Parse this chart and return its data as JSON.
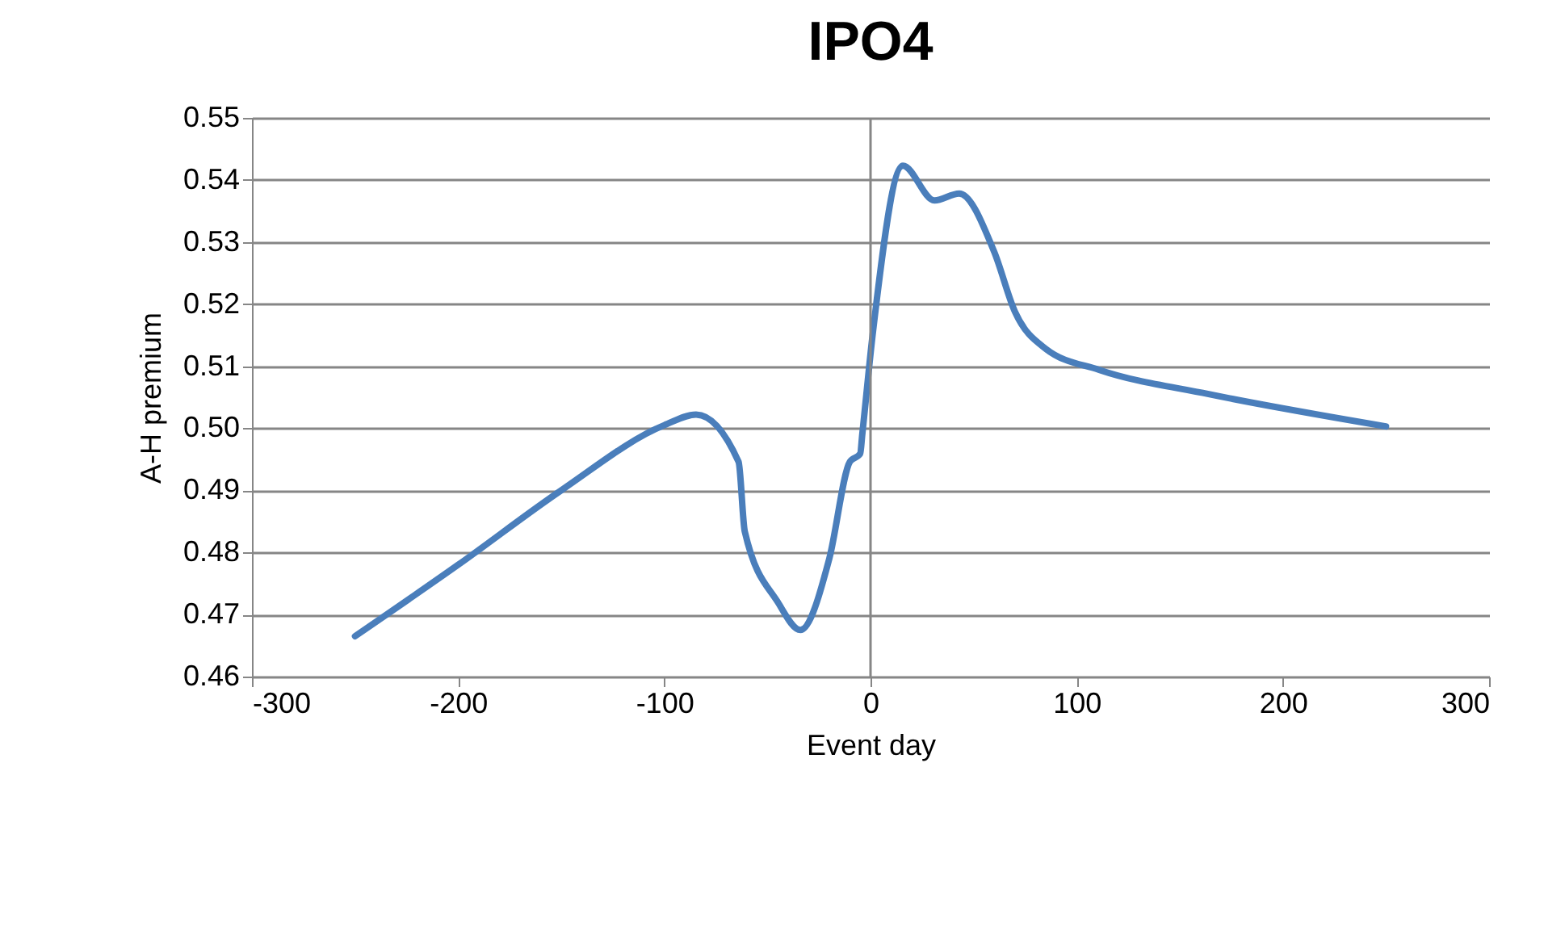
{
  "chart_data": {
    "type": "line",
    "title": "IPO4",
    "xlabel": "Event day",
    "ylabel": "A-H premium",
    "x": [
      -250,
      -200,
      -150,
      -100,
      -84.6,
      -64,
      -61,
      -45,
      -34,
      -20,
      -10,
      -5,
      -4,
      1,
      15.7,
      31,
      43,
      60,
      70,
      85,
      111,
      164,
      250
    ],
    "series": [
      {
        "color": "#4a7ebb",
        "values": [
          0.4665,
          0.478,
          0.49,
          0.5005,
          0.5022,
          0.4946,
          0.4834,
          0.472,
          0.4675,
          0.479,
          0.4946,
          0.4959,
          0.499,
          0.515,
          0.5423,
          0.5367,
          0.5378,
          0.5284,
          0.5188,
          0.5128,
          0.5094,
          0.5055,
          0.5003
        ]
      }
    ],
    "xlim": [
      -300,
      300
    ],
    "xticks": [
      -300,
      -200,
      -100,
      0,
      100,
      200,
      300
    ],
    "ylim": [
      0.46,
      0.55
    ],
    "yticks": [
      0.46,
      0.47,
      0.48,
      0.49,
      {
        "value": 0.5,
        "label": "0.50"
      },
      0.51,
      0.52,
      0.53,
      0.54,
      0.55
    ],
    "grid": "y",
    "legend": false,
    "marker": "none",
    "line_style": "solid",
    "ref_lines": [
      {
        "axis": "x",
        "value": 0,
        "color": "#868686"
      }
    ]
  }
}
